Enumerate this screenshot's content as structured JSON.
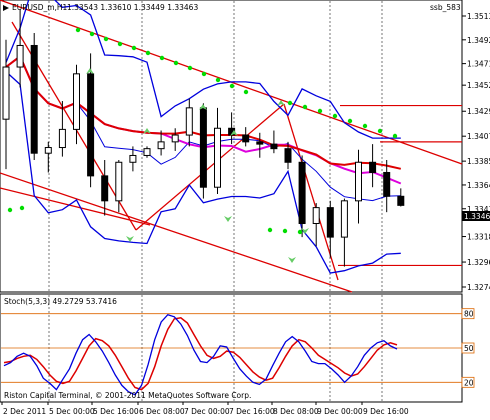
{
  "window": {
    "title": "EURUSD_m,H1",
    "ohlc": "1.33543 1.33610 1.33449 1.33463",
    "indicator_tag": "ssb_583",
    "bid_price": "1.33463"
  },
  "colors": {
    "bollinger": "#0000dd",
    "ma": "#dd0000",
    "ma_slow": "#dd00dd",
    "parabolic_sar": "#00dd00",
    "channel": "#dd0000",
    "level_line": "#dd0000",
    "arrow": "#66cc66",
    "stoch_main": "#0000dd",
    "stoch_signal": "#dd0000",
    "stoch_levels": "#dd6600"
  },
  "chart_data": {
    "type": "candlestick",
    "price_axis": [
      "1.35130",
      "1.34920",
      "1.34710",
      "1.34520",
      "1.34290",
      "1.34070",
      "1.33850",
      "1.33640",
      "1.33430",
      "1.33185",
      "1.32960",
      "1.32740"
    ],
    "time_axis": [
      "2 Dec 2011",
      "5 Dec 00:00",
      "5 Dec 16:00",
      "6 Dec 08:00",
      "7 Dec 00:00",
      "7 Dec 16:00",
      "8 Dec 08:00",
      "9 Dec 00:00",
      "9 Dec 16:00"
    ],
    "level_lines": [
      1.3434,
      1.3402,
      1.3293
    ],
    "candles": [
      {
        "o": 1.3422,
        "h": 1.3492,
        "l": 1.3378,
        "c": 1.3468
      },
      {
        "o": 1.3468,
        "h": 1.3519,
        "l": 1.345,
        "c": 1.3487
      },
      {
        "o": 1.3487,
        "h": 1.3498,
        "l": 1.3386,
        "c": 1.3392
      },
      {
        "o": 1.3392,
        "h": 1.3402,
        "l": 1.3375,
        "c": 1.3397
      },
      {
        "o": 1.3397,
        "h": 1.3438,
        "l": 1.3389,
        "c": 1.3413
      },
      {
        "o": 1.3413,
        "h": 1.347,
        "l": 1.34,
        "c": 1.3462
      },
      {
        "o": 1.3462,
        "h": 1.348,
        "l": 1.3362,
        "c": 1.3372
      },
      {
        "o": 1.3372,
        "h": 1.3386,
        "l": 1.3337,
        "c": 1.335
      },
      {
        "o": 1.335,
        "h": 1.3386,
        "l": 1.334,
        "c": 1.3384
      },
      {
        "o": 1.3384,
        "h": 1.3398,
        "l": 1.3376,
        "c": 1.339
      },
      {
        "o": 1.339,
        "h": 1.3398,
        "l": 1.3388,
        "c": 1.3396
      },
      {
        "o": 1.3396,
        "h": 1.3412,
        "l": 1.339,
        "c": 1.3402
      },
      {
        "o": 1.3402,
        "h": 1.3414,
        "l": 1.3394,
        "c": 1.3408
      },
      {
        "o": 1.3408,
        "h": 1.344,
        "l": 1.3398,
        "c": 1.3432
      },
      {
        "o": 1.3432,
        "h": 1.3436,
        "l": 1.3352,
        "c": 1.3362
      },
      {
        "o": 1.3362,
        "h": 1.3432,
        "l": 1.3356,
        "c": 1.3414
      },
      {
        "o": 1.3414,
        "h": 1.3428,
        "l": 1.34,
        "c": 1.3408
      },
      {
        "o": 1.3408,
        "h": 1.3415,
        "l": 1.3398,
        "c": 1.3402
      },
      {
        "o": 1.3402,
        "h": 1.341,
        "l": 1.3388,
        "c": 1.34
      },
      {
        "o": 1.34,
        "h": 1.3412,
        "l": 1.3392,
        "c": 1.3396
      },
      {
        "o": 1.3396,
        "h": 1.3402,
        "l": 1.3378,
        "c": 1.3384
      },
      {
        "o": 1.3384,
        "h": 1.339,
        "l": 1.3318,
        "c": 1.333
      },
      {
        "o": 1.333,
        "h": 1.3348,
        "l": 1.331,
        "c": 1.3344
      },
      {
        "o": 1.3344,
        "h": 1.335,
        "l": 1.33,
        "c": 1.3318
      },
      {
        "o": 1.3318,
        "h": 1.3352,
        "l": 1.3292,
        "c": 1.335
      },
      {
        "o": 1.335,
        "h": 1.3395,
        "l": 1.333,
        "c": 1.3384
      },
      {
        "o": 1.3384,
        "h": 1.34,
        "l": 1.3362,
        "c": 1.3375
      },
      {
        "o": 1.3375,
        "h": 1.3386,
        "l": 1.334,
        "c": 1.3354
      },
      {
        "o": 1.3354,
        "h": 1.3361,
        "l": 1.3345,
        "c": 1.3346
      }
    ],
    "stochastic": {
      "label": "Stoch(5,3,3) 49.2729 53.7416",
      "levels": [
        "80",
        "50",
        "20"
      ],
      "main": [
        33,
        36,
        42,
        45,
        42,
        33,
        21,
        16,
        10,
        20,
        30,
        45,
        58,
        63,
        56,
        47,
        36,
        24,
        14,
        8,
        5,
        14,
        34,
        58,
        75,
        82,
        80,
        73,
        62,
        48,
        37,
        36,
        42,
        52,
        51,
        40,
        30,
        23,
        17,
        15,
        20,
        33,
        45,
        56,
        61,
        56,
        47,
        37,
        35,
        35,
        30,
        24,
        17,
        23,
        32,
        43,
        50,
        55,
        57,
        52,
        49
      ],
      "signal": [
        36,
        37,
        40,
        42,
        43,
        39,
        32,
        24,
        18,
        16,
        18,
        28,
        40,
        52,
        59,
        57,
        52,
        43,
        32,
        21,
        12,
        10,
        16,
        32,
        52,
        68,
        78,
        79,
        74,
        63,
        52,
        43,
        40,
        42,
        47,
        46,
        41,
        34,
        27,
        22,
        19,
        21,
        31,
        42,
        52,
        58,
        56,
        50,
        43,
        39,
        35,
        31,
        26,
        23,
        25,
        32,
        40,
        48,
        53,
        55,
        53
      ]
    }
  },
  "footer": {
    "copyright": "Riston Capital Terminal, © 2001-2011 MetaQuotes Software Corp."
  }
}
